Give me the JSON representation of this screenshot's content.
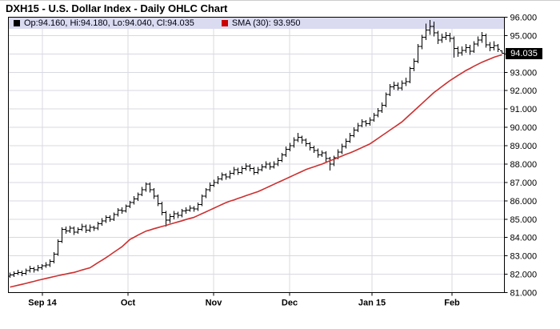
{
  "title": "DXH15 - U.S. Dollar Index - Daily OHLC Chart",
  "legend": {
    "ohlc_label": "Op:94.160, Hi:94.180, Lo:94.040, Cl:94.035",
    "sma_label": "SMA (30): 93.950"
  },
  "price_marker": {
    "value": "94.035"
  },
  "colors": {
    "bar": "#000000",
    "sma_line": "#cc3030",
    "sma_marker": "#cc0000",
    "grid": "#d8d8e2",
    "legend_bg": "#dadaf0",
    "axis": "#000000",
    "marker_bg": "#000000",
    "marker_fg": "#ffffff",
    "label_text": "#000000"
  },
  "chart_data": {
    "type": "ohlc",
    "title": "DXH15 - U.S. Dollar Index - Daily OHLC Chart",
    "ylim": [
      81,
      96
    ],
    "grid": true,
    "sma_period": 30,
    "sma_last": 93.95,
    "last_quote": {
      "open": 94.16,
      "high": 94.18,
      "low": 94.04,
      "close": 94.035
    },
    "y_ticks": [
      {
        "v": 96,
        "label": "96.000"
      },
      {
        "v": 95,
        "label": "95.000"
      },
      {
        "v": 93,
        "label": "93.000"
      },
      {
        "v": 92,
        "label": "92.000"
      },
      {
        "v": 91,
        "label": "91.000"
      },
      {
        "v": 90,
        "label": "90.000"
      },
      {
        "v": 89,
        "label": "89.000"
      },
      {
        "v": 88,
        "label": "88.000"
      },
      {
        "v": 87,
        "label": "87.000"
      },
      {
        "v": 86,
        "label": "86.000"
      },
      {
        "v": 85,
        "label": "85.000"
      },
      {
        "v": 84,
        "label": "84.000"
      },
      {
        "v": 83,
        "label": "83.000"
      },
      {
        "v": 82,
        "label": "82.000"
      },
      {
        "v": 81,
        "label": "81.000"
      }
    ],
    "x_ticks": [
      {
        "label": "Sep 14",
        "pos": 8.1
      },
      {
        "label": "Oct",
        "pos": 29.5
      },
      {
        "label": "Nov",
        "pos": 50.9
      },
      {
        "label": "Dec",
        "pos": 69.9
      },
      {
        "label": "Jan 15",
        "pos": 90.5
      },
      {
        "label": "Feb",
        "pos": 110.5
      }
    ],
    "bars": [
      [
        81.9,
        82.1,
        81.8,
        81.95
      ],
      [
        81.95,
        82.15,
        81.85,
        82.05
      ],
      [
        82.05,
        82.25,
        81.95,
        82.1
      ],
      [
        82.1,
        82.2,
        81.9,
        82.05
      ],
      [
        82.05,
        82.3,
        81.95,
        82.2
      ],
      [
        82.2,
        82.45,
        82.1,
        82.3
      ],
      [
        82.3,
        82.4,
        82.1,
        82.25
      ],
      [
        82.25,
        82.5,
        82.15,
        82.35
      ],
      [
        82.35,
        82.55,
        82.25,
        82.45
      ],
      [
        82.45,
        82.65,
        82.35,
        82.5
      ],
      [
        82.5,
        82.8,
        82.4,
        82.7
      ],
      [
        82.7,
        83.2,
        82.6,
        83.1
      ],
      [
        83.1,
        83.9,
        83.0,
        83.8
      ],
      [
        83.8,
        84.55,
        83.7,
        84.45
      ],
      [
        84.45,
        84.6,
        84.2,
        84.35
      ],
      [
        84.35,
        84.65,
        84.25,
        84.5
      ],
      [
        84.5,
        84.6,
        84.15,
        84.3
      ],
      [
        84.3,
        84.55,
        84.2,
        84.45
      ],
      [
        84.45,
        84.75,
        84.35,
        84.6
      ],
      [
        84.6,
        84.7,
        84.25,
        84.4
      ],
      [
        84.4,
        84.7,
        84.3,
        84.55
      ],
      [
        84.55,
        84.65,
        84.35,
        84.5
      ],
      [
        84.5,
        84.85,
        84.4,
        84.75
      ],
      [
        84.75,
        85.05,
        84.65,
        84.9
      ],
      [
        84.9,
        85.2,
        84.8,
        85.1
      ],
      [
        85.1,
        85.2,
        84.85,
        85.0
      ],
      [
        85.0,
        85.35,
        84.9,
        85.25
      ],
      [
        85.25,
        85.6,
        85.15,
        85.5
      ],
      [
        85.5,
        85.65,
        85.3,
        85.45
      ],
      [
        85.45,
        85.8,
        85.35,
        85.7
      ],
      [
        85.7,
        86.0,
        85.6,
        85.9
      ],
      [
        85.9,
        86.25,
        85.8,
        86.1
      ],
      [
        86.1,
        86.45,
        86.0,
        86.35
      ],
      [
        86.35,
        86.75,
        86.25,
        86.6
      ],
      [
        86.6,
        87.0,
        86.5,
        86.9
      ],
      [
        86.9,
        87.0,
        86.45,
        86.6
      ],
      [
        86.6,
        86.7,
        86.1,
        86.25
      ],
      [
        86.25,
        86.35,
        85.7,
        85.85
      ],
      [
        85.85,
        85.95,
        85.2,
        85.35
      ],
      [
        85.35,
        85.45,
        84.6,
        84.95
      ],
      [
        84.95,
        85.3,
        84.8,
        85.15
      ],
      [
        85.15,
        85.45,
        85.0,
        85.3
      ],
      [
        85.3,
        85.4,
        85.05,
        85.2
      ],
      [
        85.2,
        85.55,
        85.1,
        85.45
      ],
      [
        85.45,
        85.65,
        85.3,
        85.5
      ],
      [
        85.5,
        85.75,
        85.4,
        85.6
      ],
      [
        85.6,
        85.7,
        85.4,
        85.55
      ],
      [
        85.55,
        85.9,
        85.45,
        85.8
      ],
      [
        85.8,
        86.35,
        85.7,
        86.25
      ],
      [
        86.25,
        86.7,
        86.15,
        86.6
      ],
      [
        86.6,
        87.0,
        86.5,
        86.85
      ],
      [
        86.85,
        87.15,
        86.75,
        87.0
      ],
      [
        87.0,
        87.35,
        86.9,
        87.2
      ],
      [
        87.2,
        87.55,
        87.1,
        87.4
      ],
      [
        87.4,
        87.5,
        87.15,
        87.3
      ],
      [
        87.3,
        87.65,
        87.2,
        87.5
      ],
      [
        87.5,
        87.85,
        87.4,
        87.7
      ],
      [
        87.7,
        87.8,
        87.4,
        87.55
      ],
      [
        87.55,
        87.9,
        87.45,
        87.75
      ],
      [
        87.75,
        88.05,
        87.65,
        87.9
      ],
      [
        87.9,
        88.0,
        87.6,
        87.75
      ],
      [
        87.75,
        87.85,
        87.4,
        87.55
      ],
      [
        87.55,
        87.85,
        87.45,
        87.7
      ],
      [
        87.7,
        88.0,
        87.6,
        87.85
      ],
      [
        87.85,
        88.15,
        87.75,
        88.0
      ],
      [
        88.0,
        88.1,
        87.7,
        87.85
      ],
      [
        87.85,
        88.15,
        87.75,
        88.0
      ],
      [
        88.0,
        88.35,
        87.9,
        88.2
      ],
      [
        88.2,
        88.6,
        88.1,
        88.5
      ],
      [
        88.5,
        88.95,
        88.4,
        88.8
      ],
      [
        88.8,
        89.15,
        88.7,
        89.0
      ],
      [
        89.0,
        89.45,
        88.9,
        89.3
      ],
      [
        89.3,
        89.7,
        89.2,
        89.45
      ],
      [
        89.45,
        89.55,
        89.1,
        89.3
      ],
      [
        89.3,
        89.4,
        88.95,
        89.1
      ],
      [
        89.1,
        89.2,
        88.75,
        88.9
      ],
      [
        88.9,
        89.0,
        88.6,
        88.75
      ],
      [
        88.75,
        88.85,
        88.35,
        88.5
      ],
      [
        88.5,
        88.75,
        88.4,
        88.6
      ],
      [
        88.6,
        88.7,
        88.1,
        88.3
      ],
      [
        88.3,
        88.4,
        87.65,
        88.0
      ],
      [
        88.0,
        88.45,
        87.9,
        88.35
      ],
      [
        88.35,
        88.8,
        88.25,
        88.65
      ],
      [
        88.65,
        89.1,
        88.55,
        88.95
      ],
      [
        88.95,
        89.4,
        88.85,
        89.25
      ],
      [
        89.25,
        89.7,
        89.15,
        89.55
      ],
      [
        89.55,
        90.0,
        89.45,
        89.85
      ],
      [
        89.85,
        90.25,
        89.75,
        90.1
      ],
      [
        90.1,
        90.45,
        90.0,
        90.3
      ],
      [
        90.3,
        90.4,
        90.05,
        90.2
      ],
      [
        90.2,
        90.55,
        90.1,
        90.4
      ],
      [
        90.4,
        90.8,
        90.3,
        90.65
      ],
      [
        90.65,
        91.05,
        90.55,
        90.9
      ],
      [
        90.9,
        91.35,
        90.8,
        91.2
      ],
      [
        91.2,
        91.9,
        91.1,
        91.8
      ],
      [
        91.8,
        92.35,
        91.7,
        92.2
      ],
      [
        92.2,
        92.5,
        92.05,
        92.3
      ],
      [
        92.3,
        92.45,
        92.0,
        92.15
      ],
      [
        92.15,
        92.55,
        92.0,
        92.4
      ],
      [
        92.4,
        92.7,
        92.25,
        92.5
      ],
      [
        92.5,
        93.3,
        92.4,
        93.2
      ],
      [
        93.2,
        93.75,
        93.05,
        93.6
      ],
      [
        93.6,
        94.55,
        93.5,
        94.4
      ],
      [
        94.4,
        95.05,
        94.25,
        94.9
      ],
      [
        94.9,
        95.65,
        94.75,
        95.3
      ],
      [
        95.3,
        95.85,
        95.05,
        95.5
      ],
      [
        95.5,
        95.75,
        94.95,
        95.15
      ],
      [
        95.15,
        95.25,
        94.55,
        94.75
      ],
      [
        94.75,
        95.1,
        94.6,
        94.9
      ],
      [
        94.9,
        95.2,
        94.75,
        95.0
      ],
      [
        95.0,
        95.15,
        94.65,
        94.85
      ],
      [
        94.85,
        94.95,
        93.8,
        94.3
      ],
      [
        94.3,
        94.4,
        93.85,
        94.05
      ],
      [
        94.05,
        94.4,
        93.9,
        94.2
      ],
      [
        94.2,
        94.55,
        94.05,
        94.35
      ],
      [
        94.35,
        94.5,
        93.95,
        94.15
      ],
      [
        94.15,
        94.7,
        94.05,
        94.55
      ],
      [
        94.55,
        94.95,
        94.4,
        94.75
      ],
      [
        94.75,
        95.2,
        94.6,
        95.0
      ],
      [
        95.0,
        95.1,
        94.35,
        94.5
      ],
      [
        94.5,
        94.65,
        94.15,
        94.35
      ],
      [
        94.35,
        94.7,
        94.2,
        94.45
      ],
      [
        94.45,
        94.55,
        94.1,
        94.25
      ],
      [
        94.16,
        94.18,
        94.04,
        94.035
      ]
    ],
    "sma": [
      81.3,
      81.35,
      81.4,
      81.45,
      81.5,
      81.56,
      81.61,
      81.67,
      81.72,
      81.77,
      81.82,
      81.87,
      81.92,
      81.97,
      82.01,
      82.06,
      82.1,
      82.16,
      82.23,
      82.29,
      82.35,
      82.49,
      82.63,
      82.76,
      82.9,
      83.05,
      83.2,
      83.35,
      83.5,
      83.7,
      83.9,
      84.01,
      84.13,
      84.24,
      84.35,
      84.41,
      84.48,
      84.54,
      84.6,
      84.66,
      84.73,
      84.79,
      84.85,
      84.91,
      84.98,
      85.04,
      85.1,
      85.2,
      85.3,
      85.4,
      85.5,
      85.6,
      85.7,
      85.8,
      85.9,
      85.98,
      86.05,
      86.13,
      86.2,
      86.28,
      86.35,
      86.43,
      86.5,
      86.6,
      86.7,
      86.8,
      86.9,
      87.0,
      87.1,
      87.2,
      87.3,
      87.4,
      87.5,
      87.6,
      87.7,
      87.78,
      87.85,
      87.93,
      88.0,
      88.09,
      88.18,
      88.26,
      88.35,
      88.44,
      88.53,
      88.61,
      88.7,
      88.8,
      88.9,
      89.0,
      89.1,
      89.25,
      89.4,
      89.55,
      89.7,
      89.85,
      90.0,
      90.15,
      90.3,
      90.5,
      90.7,
      90.9,
      91.1,
      91.3,
      91.5,
      91.7,
      91.9,
      92.06,
      92.23,
      92.39,
      92.55,
      92.69,
      92.83,
      92.96,
      93.1,
      93.21,
      93.33,
      93.44,
      93.55,
      93.64,
      93.73,
      93.82,
      93.89,
      93.95
    ]
  }
}
